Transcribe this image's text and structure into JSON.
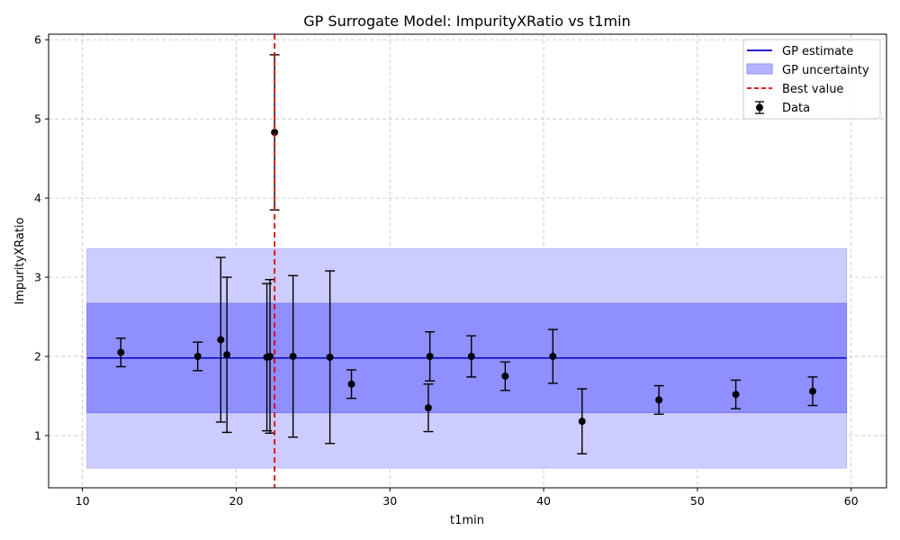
{
  "chart_data": {
    "type": "scatter",
    "title": "GP Surrogate Model: ImpurityXRatio vs t1min",
    "xlabel": "t1min",
    "ylabel": "ImpurityXRatio",
    "xlim": [
      7.8,
      62.3
    ],
    "ylim": [
      0.34,
      6.07
    ],
    "xticks": [
      10,
      20,
      30,
      40,
      50,
      60
    ],
    "yticks": [
      1,
      2,
      3,
      4,
      5,
      6
    ],
    "grid": true,
    "legend_position": "top-right",
    "legend": [
      "GP estimate",
      "GP uncertainty",
      "Best value",
      "Data"
    ],
    "colors": {
      "gp_line": "#0000cc",
      "band_outer": "#ccccff",
      "band_inner": "#8f8fff",
      "best": "#e00000",
      "data": "#000000",
      "grid": "#c8c8c8"
    },
    "gp_estimate": {
      "x_range": [
        10.3,
        59.7
      ],
      "value": 1.98
    },
    "gp_uncertainty": {
      "x_range": [
        10.3,
        59.7
      ],
      "inner": [
        1.29,
        2.67
      ],
      "outer": [
        0.59,
        3.36
      ]
    },
    "best_value_x": 22.5,
    "points": [
      {
        "x": 12.5,
        "y": 2.05,
        "err": 0.18
      },
      {
        "x": 17.5,
        "y": 2.0,
        "err": 0.18
      },
      {
        "x": 19.0,
        "y": 2.21,
        "err": 1.04
      },
      {
        "x": 19.4,
        "y": 2.02,
        "err": 0.98
      },
      {
        "x": 22.0,
        "y": 1.99,
        "err": 0.93
      },
      {
        "x": 22.2,
        "y": 2.0,
        "err": 0.97
      },
      {
        "x": 22.5,
        "y": 4.83,
        "err": 0.98
      },
      {
        "x": 23.7,
        "y": 2.0,
        "err": 1.02
      },
      {
        "x": 26.1,
        "y": 1.99,
        "err": 1.09
      },
      {
        "x": 27.5,
        "y": 1.65,
        "err": 0.18
      },
      {
        "x": 32.5,
        "y": 1.35,
        "err": 0.3
      },
      {
        "x": 32.6,
        "y": 2.0,
        "err": 0.31
      },
      {
        "x": 35.3,
        "y": 2.0,
        "err": 0.26
      },
      {
        "x": 37.5,
        "y": 1.75,
        "err": 0.18
      },
      {
        "x": 40.6,
        "y": 2.0,
        "err": 0.34
      },
      {
        "x": 42.5,
        "y": 1.18,
        "err": 0.41
      },
      {
        "x": 47.5,
        "y": 1.45,
        "err": 0.18
      },
      {
        "x": 52.5,
        "y": 1.52,
        "err": 0.18
      },
      {
        "x": 57.5,
        "y": 1.56,
        "err": 0.18
      }
    ]
  }
}
